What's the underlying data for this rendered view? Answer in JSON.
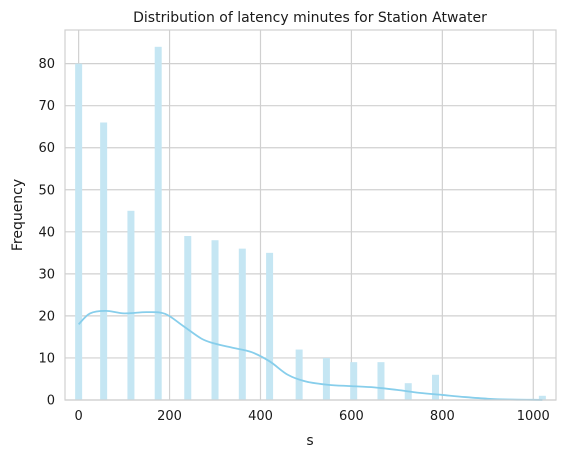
{
  "chart_data": {
    "type": "bar",
    "subtype": "histogram_with_kde",
    "title": "Distribution of latency minutes for Station Atwater",
    "xlabel": "s",
    "ylabel": "Frequency",
    "xlim": [
      -30,
      1050
    ],
    "ylim": [
      0,
      88
    ],
    "xticks": [
      0,
      200,
      400,
      600,
      800,
      1000
    ],
    "yticks": [
      0,
      10,
      20,
      30,
      40,
      50,
      60,
      70,
      80
    ],
    "grid": true,
    "bar_color": "#c5e6f3",
    "kde_color": "#87ceeb",
    "bins": [
      {
        "x": 0,
        "value": 80
      },
      {
        "x": 55,
        "value": 66
      },
      {
        "x": 115,
        "value": 45
      },
      {
        "x": 175,
        "value": 84
      },
      {
        "x": 240,
        "value": 39
      },
      {
        "x": 300,
        "value": 38
      },
      {
        "x": 360,
        "value": 36
      },
      {
        "x": 420,
        "value": 35
      },
      {
        "x": 485,
        "value": 12
      },
      {
        "x": 545,
        "value": 10
      },
      {
        "x": 605,
        "value": 9
      },
      {
        "x": 665,
        "value": 9
      },
      {
        "x": 725,
        "value": 4
      },
      {
        "x": 785,
        "value": 6
      },
      {
        "x": 1020,
        "value": 1
      }
    ],
    "kde": {
      "x": [
        0,
        25,
        60,
        100,
        150,
        190,
        230,
        270,
        300,
        340,
        380,
        420,
        460,
        500,
        550,
        600,
        650,
        700,
        750,
        800,
        850,
        900,
        950,
        1000,
        1020
      ],
      "y": [
        18,
        20.6,
        21.2,
        20.6,
        20.9,
        20.5,
        17.6,
        14.6,
        13.4,
        12.4,
        11.4,
        9.2,
        6.0,
        4.4,
        3.6,
        3.3,
        3.0,
        2.4,
        1.7,
        1.2,
        0.7,
        0.3,
        0.1,
        0.05,
        0.02
      ]
    }
  }
}
